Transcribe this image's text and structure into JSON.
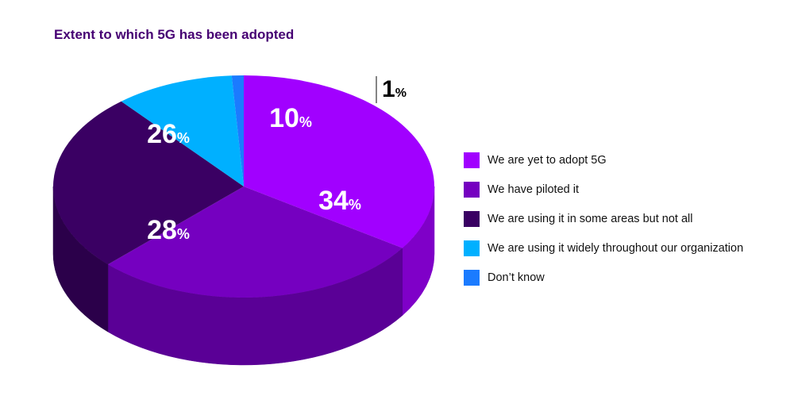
{
  "chart_data": {
    "type": "pie",
    "title": "Extent to which 5G has been adopted",
    "slices": [
      {
        "label": "We are yet to adopt 5G",
        "value": 34,
        "display": "34",
        "color": "#A100FF",
        "side_color": "#7F00C8"
      },
      {
        "label": "We have piloted it",
        "value": 28,
        "display": "28",
        "color": "#7500C0",
        "side_color": "#5A0096"
      },
      {
        "label": "We are using it in some areas but not all",
        "value": 26,
        "display": "26",
        "color": "#3A0063",
        "side_color": "#2B004A"
      },
      {
        "label": "We are using it widely throughout our organization",
        "value": 10,
        "display": "10",
        "color": "#00B0FF",
        "side_color": "#0090D0"
      },
      {
        "label": "Don’t know",
        "value": 1,
        "display": "1",
        "color": "#1B7BFF",
        "side_color": "#1560CC"
      }
    ],
    "unit_suffix": "%",
    "legend_position": "right",
    "style": "3d"
  }
}
